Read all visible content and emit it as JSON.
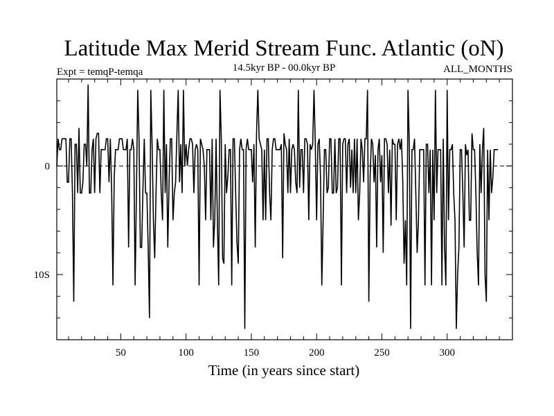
{
  "chart_data": {
    "type": "line",
    "title": "Latitude Max Merid Stream Func. Atlantic (oN)",
    "subtitle_left": "Expt = temqP-temqa",
    "subtitle_center": "14.5kyr BP - 00.0kyr BP",
    "subtitle_right": "ALL_MONTHS",
    "xlabel": "Time (in years since start)",
    "ylabel": "",
    "xlim": [
      1,
      350
    ],
    "ylim": [
      -16,
      8
    ],
    "x_ticks": [
      50,
      100,
      150,
      200,
      250,
      300
    ],
    "x_tick_labels": [
      "50",
      "100",
      "150",
      "200",
      "250",
      "300"
    ],
    "y_ticks": [
      0,
      -10
    ],
    "y_tick_labels": [
      "0",
      "10S"
    ],
    "zero_line": "dashed",
    "series": [
      {
        "name": "temqP-temqa",
        "x_start": 1,
        "x_step": 1,
        "values": [
          0,
          2.5,
          1.5,
          1.5,
          2.5,
          2.5,
          2.5,
          2.5,
          -1.5,
          -1.5,
          2.5,
          2.5,
          -2.5,
          -12.5,
          2,
          2,
          -2.5,
          3.5,
          -2.5,
          -2.5,
          -1.5,
          2,
          2,
          0,
          7.5,
          -2.5,
          -2.5,
          1.5,
          2.5,
          -2.5,
          2.5,
          3,
          3,
          -2.5,
          1.5,
          1.5,
          1.5,
          1.5,
          2.5,
          2.5,
          -1.5,
          2.5,
          -2,
          -11,
          -1,
          1.5,
          1.5,
          1.5,
          2.5,
          2.5,
          2.5,
          1.5,
          1.5,
          1.5,
          2.5,
          -7.5,
          1.5,
          1.5,
          2.5,
          1.5,
          -11,
          -2.5,
          7,
          2.5,
          -7.5,
          -7.5,
          -2,
          2.5,
          -2.5,
          -2.5,
          -7.5,
          -14,
          7,
          2,
          -5,
          -8.5,
          -2.5,
          2.5,
          1.5,
          1.5,
          -2.5,
          -5,
          7,
          -2.5,
          2,
          -7.5,
          -1.5,
          2.5,
          2.5,
          -5,
          -2.5,
          -1.5,
          3,
          7,
          -1.5,
          2,
          -2.5,
          7,
          0,
          2,
          0,
          1.5,
          2.5,
          2.5,
          2,
          -2.5,
          1.5,
          2,
          1.5,
          -11,
          2.5,
          2,
          1.5,
          0,
          -5,
          1.5,
          1.5,
          1.5,
          -5,
          2.5,
          -7.5,
          -5,
          2.5,
          -5,
          -11,
          7,
          2.5,
          -8.5,
          -9,
          2,
          -2.5,
          -1,
          1.5,
          1.5,
          -11,
          2.5,
          2.5,
          -2.5,
          -7,
          -9,
          1.5,
          2.5,
          1.5,
          1.5,
          -15,
          1.5,
          2.5,
          1.5,
          1.5,
          1.5,
          -1.5,
          2,
          -7.5,
          3,
          7,
          2.5,
          2,
          1.5,
          -5,
          1.5,
          -5,
          2.5,
          2.5,
          -2.5,
          -5,
          1.5,
          2.5,
          2.5,
          1.5,
          1.5,
          1.5,
          1.5,
          2,
          -8.5,
          3,
          2,
          1.5,
          -2.5,
          2.5,
          -2.5,
          1.5,
          2,
          1.5,
          -1.5,
          -2.5,
          7,
          -2,
          1.5,
          1.5,
          -2.5,
          2.5,
          2.5,
          2,
          -5,
          2,
          1.5,
          2,
          7,
          2,
          -5,
          2,
          2.5,
          -1,
          -11,
          -5,
          1.5,
          1.5,
          -2.5,
          -2,
          2.5,
          2.5,
          -2.5,
          -2.5,
          2.5,
          -2.5,
          -2,
          2.5,
          2.5,
          -11,
          2,
          2.5,
          2.5,
          -2.5,
          2,
          2.5,
          -2,
          1.5,
          -2.5,
          2.5,
          -2.5,
          2.5,
          -5,
          -2.5,
          2.5,
          1.5,
          -1.5,
          2.5,
          2.5,
          7,
          -12.5,
          -1,
          2.5,
          2,
          -1.5,
          1,
          -7.5,
          1.5,
          2.5,
          -1.5,
          1,
          -8,
          2.5,
          2.5,
          2,
          -2.5,
          1.5,
          -5.5,
          2.5,
          2,
          2,
          -5,
          2,
          2.5,
          1.5,
          2.5,
          -1.5,
          -9,
          -5,
          -11,
          7,
          2,
          -15,
          1.5,
          1.5,
          2.5,
          -2.5,
          -8,
          -5,
          1.5,
          1.5,
          1.5,
          1.5,
          -11,
          2,
          2,
          -2.5,
          1.5,
          -11,
          1.5,
          -5,
          7,
          -2.5,
          1.5,
          1.5,
          1.5,
          -11,
          2.5,
          -7.5,
          -11,
          7,
          -5,
          1.5,
          1.5,
          2,
          -2.5,
          -5,
          -15,
          -10,
          -7.5,
          1.5,
          1.5,
          -2.5,
          -7.5,
          2,
          1,
          1.5,
          -5,
          -5,
          3,
          1.5,
          1.5,
          -2.5,
          -8,
          -11,
          2,
          -2.5,
          1.5,
          3.5,
          -10,
          -12.5,
          1.5,
          -5,
          1.5,
          -2.5,
          -1,
          1.5,
          1.5,
          1.5,
          1.5
        ]
      }
    ]
  }
}
